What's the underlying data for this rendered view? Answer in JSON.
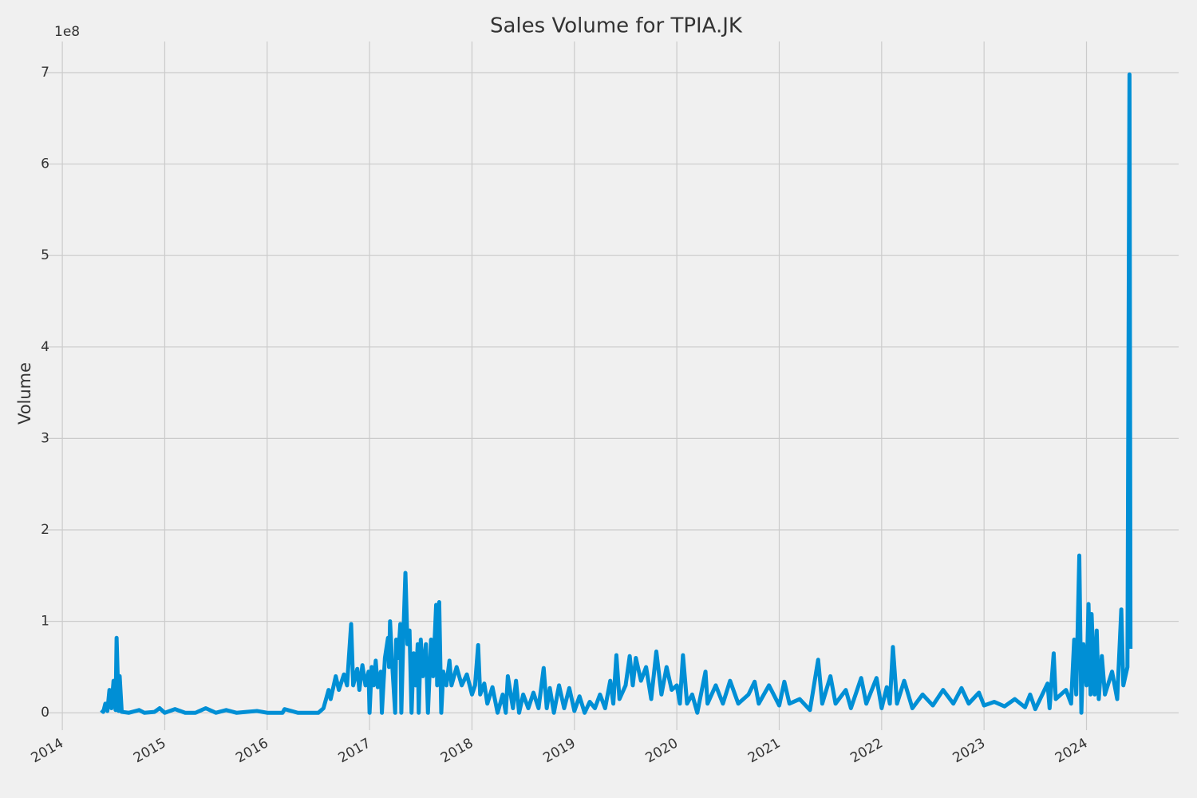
{
  "chart_data": {
    "type": "line",
    "title": "Sales Volume for TPIA.JK",
    "ylabel": "Volume",
    "y_offset_label": "1e8",
    "x": [
      2014.38,
      2014.4,
      2014.42,
      2014.44,
      2014.46,
      2014.48,
      2014.5,
      2014.52,
      2014.53,
      2014.55,
      2014.56,
      2014.58,
      2014.65,
      2014.75,
      2014.8,
      2014.9,
      2014.95,
      2015.0,
      2015.1,
      2015.2,
      2015.3,
      2015.4,
      2015.5,
      2015.6,
      2015.7,
      2015.9,
      2016.0,
      2016.15,
      2016.17,
      2016.3,
      2016.5,
      2016.55,
      2016.6,
      2016.62,
      2016.67,
      2016.7,
      2016.75,
      2016.78,
      2016.82,
      2016.84,
      2016.88,
      2016.9,
      2016.93,
      2016.96,
      2016.99,
      2017.0,
      2017.02,
      2017.04,
      2017.06,
      2017.08,
      2017.11,
      2017.12,
      2017.15,
      2017.18,
      2017.19,
      2017.2,
      2017.22,
      2017.25,
      2017.26,
      2017.28,
      2017.3,
      2017.31,
      2017.33,
      2017.35,
      2017.37,
      2017.39,
      2017.41,
      2017.43,
      2017.45,
      2017.47,
      2017.48,
      2017.5,
      2017.52,
      2017.55,
      2017.57,
      2017.6,
      2017.62,
      2017.65,
      2017.66,
      2017.68,
      2017.7,
      2017.72,
      2017.75,
      2017.78,
      2017.8,
      2017.85,
      2017.9,
      2017.95,
      2018.0,
      2018.03,
      2018.06,
      2018.08,
      2018.12,
      2018.15,
      2018.2,
      2018.25,
      2018.3,
      2018.33,
      2018.35,
      2018.4,
      2018.43,
      2018.46,
      2018.5,
      2018.55,
      2018.6,
      2018.65,
      2018.7,
      2018.73,
      2018.76,
      2018.8,
      2018.85,
      2018.9,
      2018.95,
      2019.0,
      2019.05,
      2019.1,
      2019.15,
      2019.2,
      2019.25,
      2019.3,
      2019.35,
      2019.38,
      2019.41,
      2019.44,
      2019.5,
      2019.54,
      2019.57,
      2019.6,
      2019.65,
      2019.7,
      2019.75,
      2019.8,
      2019.85,
      2019.9,
      2019.95,
      2020.0,
      2020.03,
      2020.06,
      2020.1,
      2020.15,
      2020.2,
      2020.28,
      2020.3,
      2020.38,
      2020.45,
      2020.52,
      2020.6,
      2020.7,
      2020.76,
      2020.8,
      2020.9,
      2021.0,
      2021.05,
      2021.1,
      2021.2,
      2021.3,
      2021.38,
      2021.42,
      2021.5,
      2021.55,
      2021.65,
      2021.7,
      2021.8,
      2021.85,
      2021.95,
      2022.0,
      2022.05,
      2022.08,
      2022.11,
      2022.15,
      2022.22,
      2022.3,
      2022.4,
      2022.5,
      2022.6,
      2022.7,
      2022.78,
      2022.85,
      2022.95,
      2023.0,
      2023.1,
      2023.2,
      2023.3,
      2023.4,
      2023.45,
      2023.5,
      2023.62,
      2023.64,
      2023.68,
      2023.7,
      2023.8,
      2023.85,
      2023.88,
      2023.9,
      2023.93,
      2023.95,
      2023.97,
      2024.0,
      2024.02,
      2024.04,
      2024.05,
      2024.08,
      2024.1,
      2024.12,
      2024.15,
      2024.18,
      2024.25,
      2024.3,
      2024.34,
      2024.36,
      2024.4,
      2024.42,
      2024.43
    ],
    "series": [
      {
        "name": "Volume",
        "color": "#008fd5",
        "values": [
          0.03,
          0.01,
          0.1,
          0.02,
          0.25,
          0.05,
          0.35,
          0.03,
          0.82,
          0.02,
          0.4,
          0.01,
          0.0,
          0.03,
          0.0,
          0.01,
          0.05,
          0.0,
          0.04,
          0.0,
          0.0,
          0.05,
          0.0,
          0.03,
          0.0,
          0.02,
          0.0,
          0.0,
          0.04,
          0.0,
          0.0,
          0.05,
          0.25,
          0.15,
          0.4,
          0.25,
          0.42,
          0.3,
          0.97,
          0.3,
          0.48,
          0.25,
          0.52,
          0.3,
          0.45,
          0.0,
          0.5,
          0.3,
          0.57,
          0.28,
          0.45,
          0.0,
          0.6,
          0.82,
          0.5,
          1.0,
          0.55,
          0.0,
          0.8,
          0.6,
          0.97,
          0.0,
          0.85,
          1.53,
          0.75,
          0.9,
          0.0,
          0.65,
          0.3,
          0.75,
          0.0,
          0.8,
          0.4,
          0.75,
          0.0,
          0.8,
          0.4,
          1.18,
          0.3,
          1.21,
          0.0,
          0.45,
          0.3,
          0.57,
          0.3,
          0.5,
          0.3,
          0.42,
          0.2,
          0.3,
          0.74,
          0.2,
          0.32,
          0.1,
          0.28,
          0.0,
          0.2,
          0.0,
          0.4,
          0.05,
          0.35,
          0.0,
          0.2,
          0.05,
          0.22,
          0.05,
          0.49,
          0.05,
          0.27,
          0.0,
          0.3,
          0.05,
          0.27,
          0.02,
          0.18,
          0.0,
          0.12,
          0.05,
          0.2,
          0.05,
          0.35,
          0.1,
          0.63,
          0.15,
          0.3,
          0.62,
          0.3,
          0.6,
          0.35,
          0.5,
          0.15,
          0.67,
          0.2,
          0.5,
          0.25,
          0.3,
          0.1,
          0.63,
          0.1,
          0.2,
          0.0,
          0.45,
          0.1,
          0.3,
          0.1,
          0.35,
          0.1,
          0.2,
          0.34,
          0.1,
          0.3,
          0.08,
          0.34,
          0.1,
          0.15,
          0.03,
          0.58,
          0.1,
          0.4,
          0.1,
          0.25,
          0.05,
          0.38,
          0.1,
          0.38,
          0.05,
          0.28,
          0.1,
          0.72,
          0.1,
          0.35,
          0.05,
          0.2,
          0.08,
          0.25,
          0.1,
          0.27,
          0.1,
          0.22,
          0.08,
          0.12,
          0.07,
          0.15,
          0.06,
          0.2,
          0.04,
          0.32,
          0.05,
          0.65,
          0.15,
          0.25,
          0.1,
          0.8,
          0.2,
          1.72,
          0.0,
          0.75,
          0.3,
          1.19,
          0.2,
          1.08,
          0.2,
          0.9,
          0.15,
          0.62,
          0.2,
          0.45,
          0.15,
          1.13,
          0.3,
          0.5,
          6.98,
          0.7
        ]
      }
    ],
    "xlim": [
      2013.82,
      2024.9
    ],
    "xticks": [
      2014,
      2015,
      2016,
      2017,
      2018,
      2019,
      2020,
      2021,
      2022,
      2023,
      2024
    ],
    "ylim": [
      -0.19,
      7.34
    ],
    "yticks": [
      0,
      1,
      2,
      3,
      4,
      5,
      6,
      7
    ],
    "grid": true
  }
}
